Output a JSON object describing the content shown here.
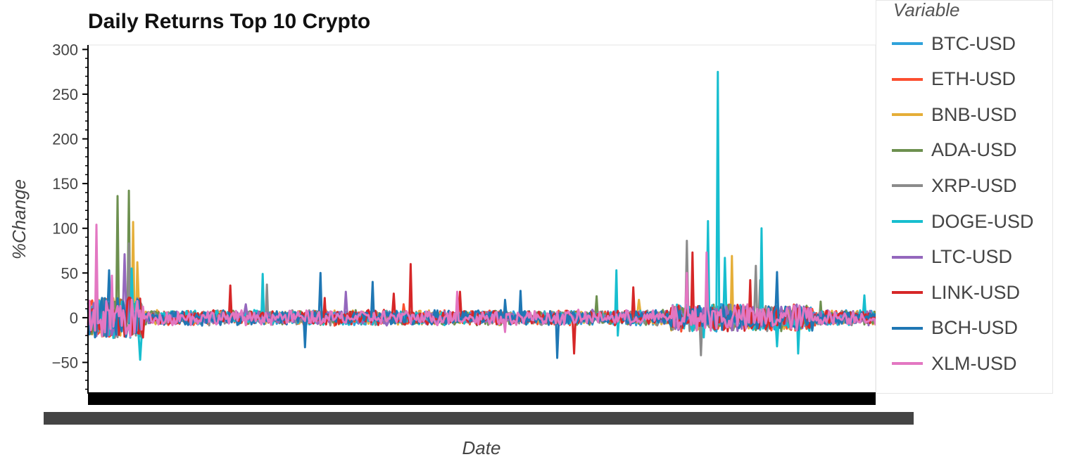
{
  "chart_data": {
    "type": "line",
    "title": "Daily Returns Top 10 Crypto",
    "xlabel": "Date",
    "ylabel": "%Change",
    "ylim": [
      -85,
      305
    ],
    "y_ticks": [
      300,
      250,
      200,
      150,
      100,
      50,
      0,
      -50
    ],
    "grid": false,
    "legend_title": "Variable",
    "legend_position": "right",
    "series": [
      {
        "name": "BTC-USD",
        "color": "#30a2da",
        "spikes": [
          [
            0.02,
            18
          ],
          [
            0.3,
            12
          ],
          [
            0.55,
            9
          ],
          [
            0.8,
            8
          ]
        ]
      },
      {
        "name": "ETH-USD",
        "color": "#fc4f30",
        "spikes": [
          [
            0.05,
            25
          ],
          [
            0.4,
            15
          ],
          [
            0.75,
            14
          ]
        ]
      },
      {
        "name": "BNB-USD",
        "color": "#e5ae38",
        "spikes": [
          [
            0.057,
            107
          ],
          [
            0.062,
            62
          ],
          [
            0.817,
            69
          ],
          [
            0.7,
            20
          ]
        ]
      },
      {
        "name": "ADA-USD",
        "color": "#6d904f",
        "spikes": [
          [
            0.038,
            136
          ],
          [
            0.051,
            142
          ],
          [
            0.645,
            24
          ],
          [
            0.93,
            18
          ]
        ]
      },
      {
        "name": "XRP-USD",
        "color": "#8b8b8b",
        "spikes": [
          [
            0.052,
            83
          ],
          [
            0.227,
            37
          ],
          [
            0.76,
            86
          ],
          [
            0.779,
            -42
          ],
          [
            0.848,
            58
          ],
          [
            0.853,
            42
          ]
        ]
      },
      {
        "name": "DOGE-USD",
        "color": "#17becf",
        "spikes": [
          [
            0.055,
            55
          ],
          [
            0.067,
            -47
          ],
          [
            0.222,
            49
          ],
          [
            0.67,
            53
          ],
          [
            0.673,
            -20
          ],
          [
            0.781,
            -22
          ],
          [
            0.787,
            108
          ],
          [
            0.8,
            275
          ],
          [
            0.808,
            67
          ],
          [
            0.855,
            100
          ],
          [
            0.875,
            -32
          ],
          [
            0.901,
            -40
          ],
          [
            0.985,
            25
          ]
        ]
      },
      {
        "name": "LTC-USD",
        "color": "#9467bd",
        "spikes": [
          [
            0.046,
            71
          ],
          [
            0.328,
            29
          ],
          [
            0.2,
            15
          ]
        ]
      },
      {
        "name": "LINK-USD",
        "color": "#d62728",
        "spikes": [
          [
            0.18,
            36
          ],
          [
            0.388,
            27
          ],
          [
            0.41,
            60
          ],
          [
            0.472,
            29
          ],
          [
            0.617,
            -40
          ],
          [
            0.692,
            34
          ],
          [
            0.768,
            73
          ],
          [
            0.84,
            42
          ],
          [
            0.3,
            22
          ]
        ]
      },
      {
        "name": "BCH-USD",
        "color": "#1f77b4",
        "spikes": [
          [
            0.027,
            53
          ],
          [
            0.275,
            -33
          ],
          [
            0.296,
            50
          ],
          [
            0.361,
            40
          ],
          [
            0.55,
            30
          ],
          [
            0.595,
            -45
          ],
          [
            0.875,
            51
          ],
          [
            0.53,
            20
          ]
        ]
      },
      {
        "name": "XLM-USD",
        "color": "#e377c2",
        "spikes": [
          [
            0.01,
            104
          ],
          [
            0.03,
            47
          ],
          [
            0.468,
            29
          ],
          [
            0.76,
            50
          ],
          [
            0.785,
            73
          ],
          [
            0.53,
            -16
          ]
        ]
      }
    ]
  }
}
